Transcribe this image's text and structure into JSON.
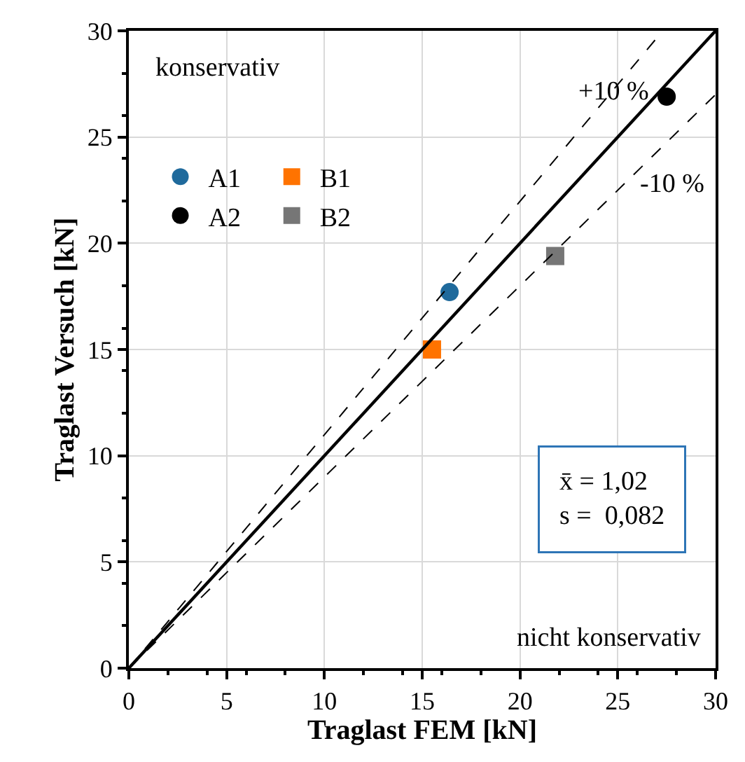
{
  "chart_data": {
    "type": "scatter",
    "xlabel": "Traglast FEM [kN]",
    "ylabel": "Traglast Versuch [kN]",
    "xlim": [
      0,
      30
    ],
    "ylim": [
      0,
      30
    ],
    "xticks": [
      0,
      5,
      10,
      15,
      20,
      25,
      30
    ],
    "yticks": [
      0,
      5,
      10,
      15,
      20,
      25,
      30
    ],
    "grid": true,
    "legend": "top left",
    "series": [
      {
        "name": "A1",
        "color": "#1f6a9c",
        "marker": "circle",
        "x": [
          16.4
        ],
        "values": [
          17.7
        ]
      },
      {
        "name": "A2",
        "color": "#000000",
        "marker": "circle",
        "x": [
          27.5
        ],
        "values": [
          26.9
        ]
      },
      {
        "name": "B1",
        "color": "#ff7300",
        "marker": "square",
        "x": [
          15.5
        ],
        "values": [
          15.0
        ]
      },
      {
        "name": "B2",
        "color": "#767676",
        "marker": "square",
        "x": [
          21.8
        ],
        "values": [
          19.4
        ]
      },
      {
        "type": "line",
        "color": "#000000",
        "line_style": "solid",
        "x": [
          0,
          30
        ],
        "values": [
          0,
          30
        ]
      },
      {
        "type": "line",
        "color": "#000000",
        "line_style": "dashed",
        "x": [
          0,
          27.3
        ],
        "values": [
          0,
          30
        ]
      },
      {
        "type": "line",
        "color": "#000000",
        "line_style": "dashed",
        "x": [
          0,
          30
        ],
        "values": [
          0,
          27
        ]
      }
    ],
    "annotations": [
      "konservativ",
      "nicht konservativ",
      "+10 %",
      "-10 %",
      "x̄ = 1,02\ns =  0,082"
    ]
  }
}
